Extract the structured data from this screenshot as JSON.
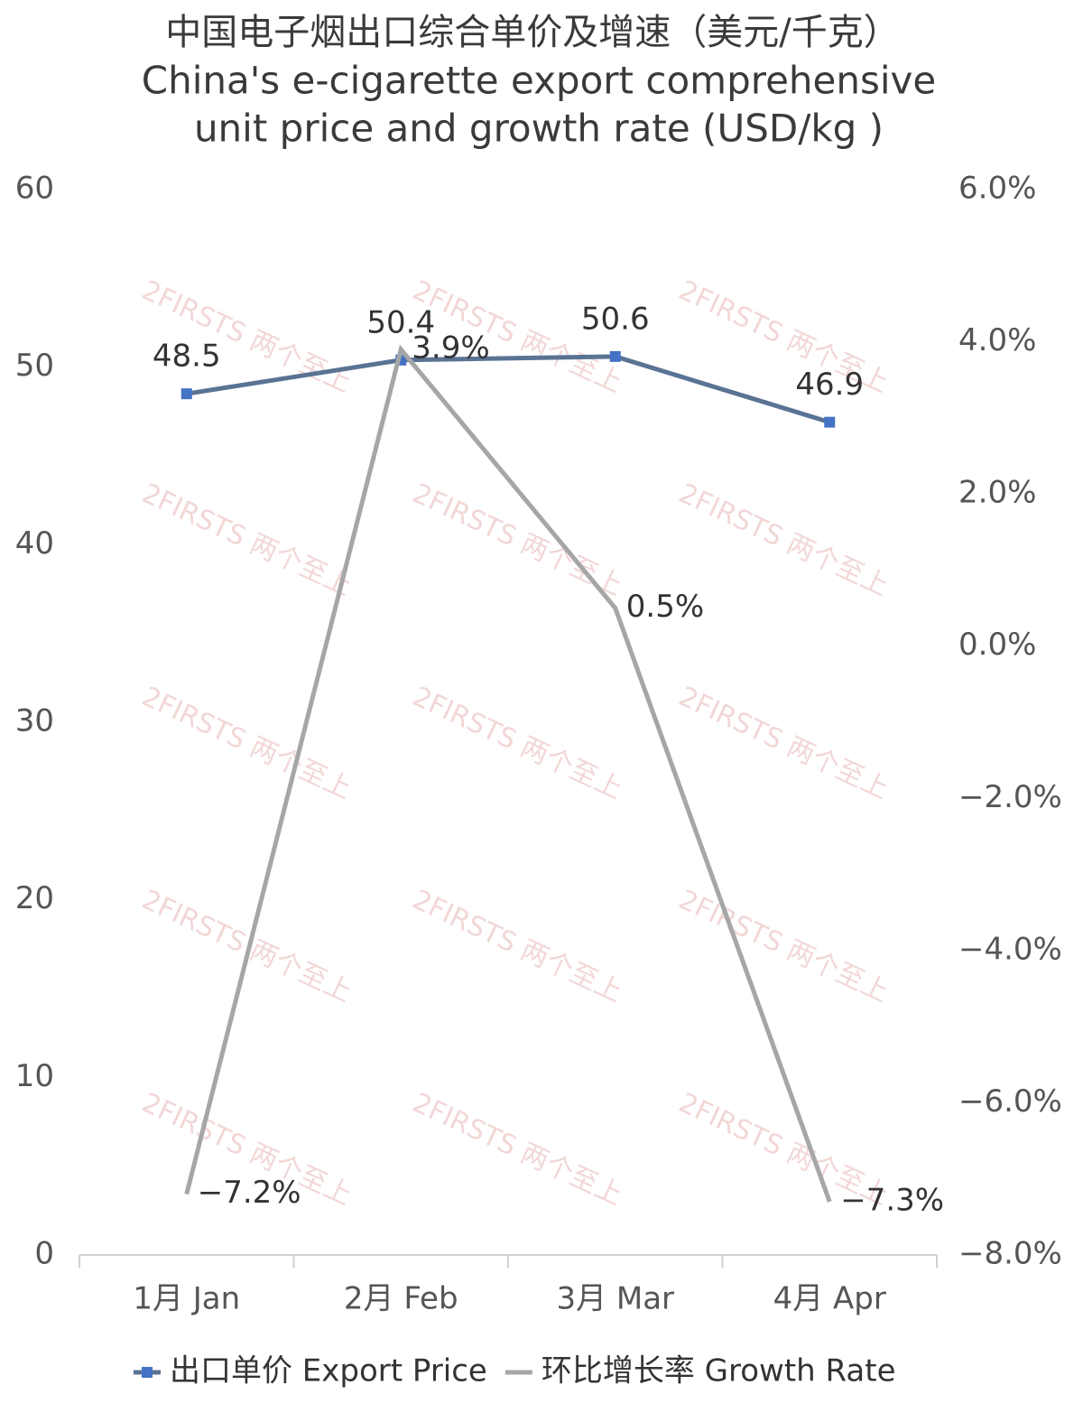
{
  "chart_data": {
    "type": "line",
    "title": "中国电子烟出口综合单价及增速（美元/千克）",
    "subtitle": [
      "China's e-cigarette export comprehensive",
      "unit price and growth rate (USD/kg )"
    ],
    "watermark": "2FIRSTS 两个至上",
    "categories": [
      "1月 Jan",
      "2月 Feb",
      "3月 Mar",
      "4月 Apr"
    ],
    "series": [
      {
        "name": "出口单价 Export Price",
        "color": "#4472c4",
        "line_color": "#5a7394",
        "marker": "square",
        "values": [
          48.5,
          50.4,
          50.6,
          46.9
        ]
      },
      {
        "name": "环比增长率 Growth Rate",
        "color": "#a6a6a6",
        "axis": "y2",
        "values": [
          -7.2,
          3.9,
          0.5,
          -7.3
        ],
        "value_labels": [
          "−7.2%",
          "3.9%",
          "0.5%",
          "−7.3%"
        ]
      }
    ],
    "ylim": [
      0,
      60
    ],
    "yticks": [
      0,
      10,
      20,
      30,
      40,
      50,
      60
    ],
    "y2lim": [
      -8,
      6
    ],
    "y2ticks": [
      {
        "value": -8,
        "label": "−8.0%"
      },
      {
        "value": -6,
        "label": "−6.0%"
      },
      {
        "value": -4,
        "label": "−4.0%"
      },
      {
        "value": -2,
        "label": "−2.0%"
      },
      {
        "value": 0,
        "label": "0.0%"
      },
      {
        "value": 2,
        "label": "2.0%"
      },
      {
        "value": 4,
        "label": "4.0%"
      },
      {
        "value": 6,
        "label": "6.0%"
      }
    ],
    "grid": false,
    "legend": "bottom"
  }
}
